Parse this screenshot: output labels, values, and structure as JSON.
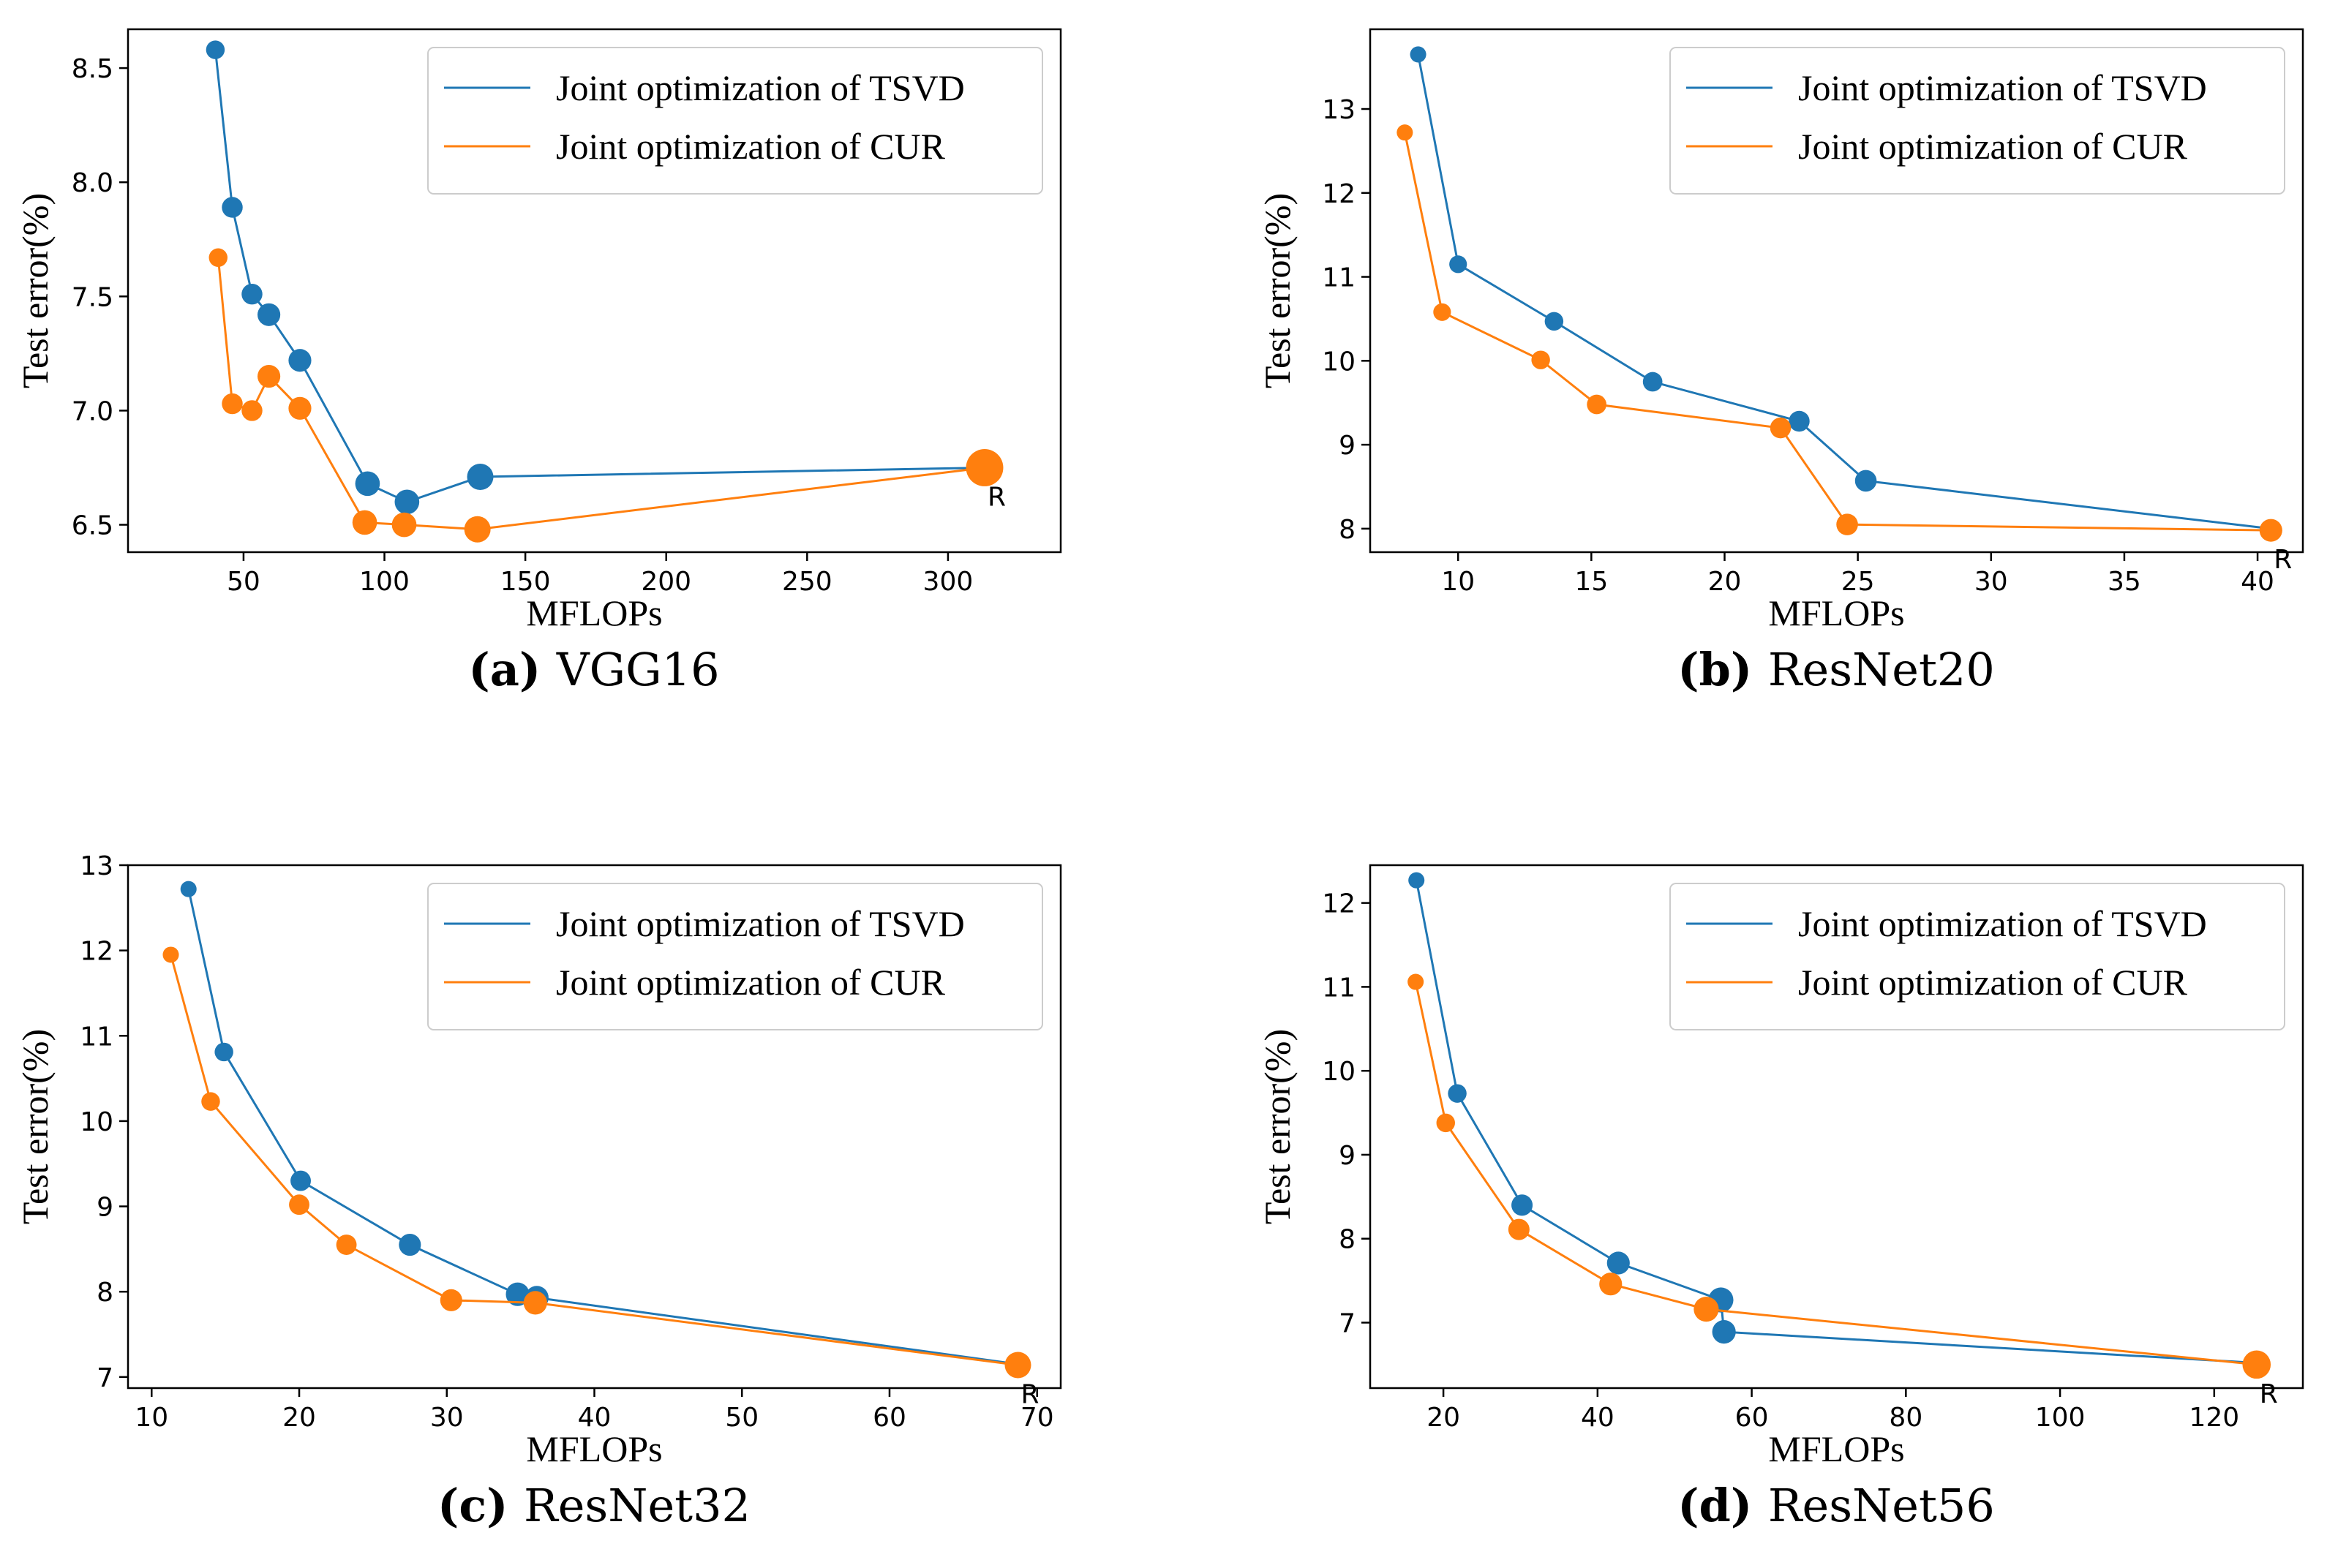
{
  "colors": {
    "tsvd": "#1f77b4",
    "cur": "#ff7f0e"
  },
  "chart_data": [
    {
      "type": "scatter",
      "caption_letter": "(a)",
      "caption_text": "VGG16",
      "xlabel": "MFLOPs",
      "ylabel": "Test error(%)",
      "xlim": [
        9,
        340
      ],
      "ylim": [
        6.38,
        8.67
      ],
      "xticks": [
        50,
        100,
        150,
        200,
        250,
        300
      ],
      "yticks": [
        6.5,
        7.0,
        7.5,
        8.0,
        8.5
      ],
      "ytick_labels": [
        "6.5",
        "7.0",
        "7.5",
        "8.0",
        "8.5"
      ],
      "legend_position": "top-right",
      "series": [
        {
          "name": "Joint optimization of TSVD",
          "color_key": "tsvd",
          "points": [
            {
              "x": 40,
              "y": 8.58,
              "size": 2
            },
            {
              "x": 46,
              "y": 7.89,
              "size": 2.5
            },
            {
              "x": 53,
              "y": 7.51,
              "size": 2.5
            },
            {
              "x": 59,
              "y": 7.42,
              "size": 3
            },
            {
              "x": 70,
              "y": 7.22,
              "size": 3
            },
            {
              "x": 94,
              "y": 6.68,
              "size": 3.5
            },
            {
              "x": 108,
              "y": 6.6,
              "size": 3.5
            },
            {
              "x": 134,
              "y": 6.71,
              "size": 4
            },
            {
              "x": 314,
              "y": 6.75,
              "size": 2
            }
          ]
        },
        {
          "name": "Joint optimization of CUR",
          "color_key": "cur",
          "points": [
            {
              "x": 41,
              "y": 7.67,
              "size": 2
            },
            {
              "x": 46,
              "y": 7.03,
              "size": 2.5
            },
            {
              "x": 53,
              "y": 7.0,
              "size": 2.5
            },
            {
              "x": 59,
              "y": 7.15,
              "size": 3
            },
            {
              "x": 70,
              "y": 7.01,
              "size": 3
            },
            {
              "x": 93,
              "y": 6.51,
              "size": 3.5
            },
            {
              "x": 107,
              "y": 6.5,
              "size": 3.5
            },
            {
              "x": 133,
              "y": 6.48,
              "size": 4
            },
            {
              "x": 313,
              "y": 6.75,
              "size": 8
            }
          ]
        }
      ],
      "reference": {
        "label": "R",
        "x": 313,
        "y": 6.75
      }
    },
    {
      "type": "scatter",
      "caption_letter": "(b)",
      "caption_text": "ResNet20",
      "xlabel": "MFLOPs",
      "ylabel": "Test error(%)",
      "xlim": [
        6.7,
        41.7
      ],
      "ylim": [
        7.72,
        13.95
      ],
      "xticks": [
        10,
        15,
        20,
        25,
        30,
        35,
        40
      ],
      "yticks": [
        8,
        9,
        10,
        11,
        12,
        13
      ],
      "ytick_labels": [
        "8",
        "9",
        "10",
        "11",
        "12",
        "13"
      ],
      "legend_position": "top-right",
      "series": [
        {
          "name": "Joint optimization of TSVD",
          "color_key": "tsvd",
          "points": [
            {
              "x": 8.5,
              "y": 13.65,
              "size": 1.5
            },
            {
              "x": 10.0,
              "y": 11.15,
              "size": 1.8
            },
            {
              "x": 13.6,
              "y": 10.47,
              "size": 2
            },
            {
              "x": 17.3,
              "y": 9.75,
              "size": 2.2
            },
            {
              "x": 22.8,
              "y": 9.28,
              "size": 2.5
            },
            {
              "x": 25.3,
              "y": 8.57,
              "size": 2.7
            },
            {
              "x": 40.5,
              "y": 8.0,
              "size": 1.5
            }
          ]
        },
        {
          "name": "Joint optimization of CUR",
          "color_key": "cur",
          "points": [
            {
              "x": 8.0,
              "y": 12.72,
              "size": 1.5
            },
            {
              "x": 9.4,
              "y": 10.58,
              "size": 1.8
            },
            {
              "x": 13.1,
              "y": 10.01,
              "size": 2
            },
            {
              "x": 15.2,
              "y": 9.48,
              "size": 2.2
            },
            {
              "x": 22.1,
              "y": 9.2,
              "size": 2.5
            },
            {
              "x": 24.6,
              "y": 8.05,
              "size": 2.7
            },
            {
              "x": 40.5,
              "y": 7.98,
              "size": 3
            }
          ]
        }
      ],
      "reference": {
        "label": "R",
        "x": 40.5,
        "y": 7.98
      }
    },
    {
      "type": "scatter",
      "caption_letter": "(c)",
      "caption_text": "ResNet32",
      "xlabel": "MFLOPs",
      "ylabel": "Test error(%)",
      "xlim": [
        8.4,
        71.6
      ],
      "ylim": [
        6.87,
        13.0
      ],
      "xticks": [
        10,
        20,
        30,
        40,
        50,
        60,
        70
      ],
      "yticks": [
        7,
        8,
        9,
        10,
        11,
        12,
        13
      ],
      "ytick_labels": [
        "7",
        "8",
        "9",
        "10",
        "11",
        "12",
        "13"
      ],
      "legend_position": "top-right",
      "series": [
        {
          "name": "Joint optimization of TSVD",
          "color_key": "tsvd",
          "points": [
            {
              "x": 12.5,
              "y": 12.72,
              "size": 1.5
            },
            {
              "x": 14.9,
              "y": 10.81,
              "size": 2
            },
            {
              "x": 20.1,
              "y": 9.3,
              "size": 2.4
            },
            {
              "x": 27.5,
              "y": 8.55,
              "size": 2.8
            },
            {
              "x": 34.8,
              "y": 7.97,
              "size": 3.2
            },
            {
              "x": 36.1,
              "y": 7.93,
              "size": 3.2
            },
            {
              "x": 68.7,
              "y": 7.15,
              "size": 1.5
            }
          ]
        },
        {
          "name": "Joint optimization of CUR",
          "color_key": "cur",
          "points": [
            {
              "x": 11.3,
              "y": 11.95,
              "size": 1.5
            },
            {
              "x": 14.0,
              "y": 10.23,
              "size": 2
            },
            {
              "x": 20.0,
              "y": 9.02,
              "size": 2.4
            },
            {
              "x": 23.2,
              "y": 8.55,
              "size": 2.4
            },
            {
              "x": 30.3,
              "y": 7.9,
              "size": 2.8
            },
            {
              "x": 36.0,
              "y": 7.87,
              "size": 3.2
            },
            {
              "x": 68.7,
              "y": 7.14,
              "size": 4
            }
          ]
        }
      ],
      "reference": {
        "label": "R",
        "x": 68.7,
        "y": 7.14
      }
    },
    {
      "type": "scatter",
      "caption_letter": "(d)",
      "caption_text": "ResNet56",
      "xlabel": "MFLOPs",
      "ylabel": "Test error(%)",
      "xlim": [
        10.5,
        131.5
      ],
      "ylim": [
        6.22,
        12.45
      ],
      "xticks": [
        20,
        40,
        60,
        80,
        100,
        120
      ],
      "yticks": [
        7,
        8,
        9,
        10,
        11,
        12
      ],
      "ytick_labels": [
        "7",
        "8",
        "9",
        "10",
        "11",
        "12"
      ],
      "legend_position": "top-right",
      "series": [
        {
          "name": "Joint optimization of TSVD",
          "color_key": "tsvd",
          "points": [
            {
              "x": 16.5,
              "y": 12.27,
              "size": 1.5
            },
            {
              "x": 21.8,
              "y": 9.73,
              "size": 2
            },
            {
              "x": 30.2,
              "y": 8.4,
              "size": 2.6
            },
            {
              "x": 42.7,
              "y": 7.71,
              "size": 3
            },
            {
              "x": 56.0,
              "y": 7.27,
              "size": 3.6
            },
            {
              "x": 56.4,
              "y": 6.89,
              "size": 3.2
            },
            {
              "x": 125.5,
              "y": 6.52,
              "size": 1.5
            }
          ]
        },
        {
          "name": "Joint optimization of CUR",
          "color_key": "cur",
          "points": [
            {
              "x": 16.4,
              "y": 11.06,
              "size": 1.5
            },
            {
              "x": 20.3,
              "y": 9.38,
              "size": 2
            },
            {
              "x": 29.8,
              "y": 8.11,
              "size": 2.6
            },
            {
              "x": 41.7,
              "y": 7.46,
              "size": 3
            },
            {
              "x": 54.1,
              "y": 7.16,
              "size": 3.6
            },
            {
              "x": 125.5,
              "y": 6.5,
              "size": 4.6
            }
          ]
        }
      ],
      "reference": {
        "label": "R",
        "x": 125.5,
        "y": 6.5
      }
    }
  ]
}
